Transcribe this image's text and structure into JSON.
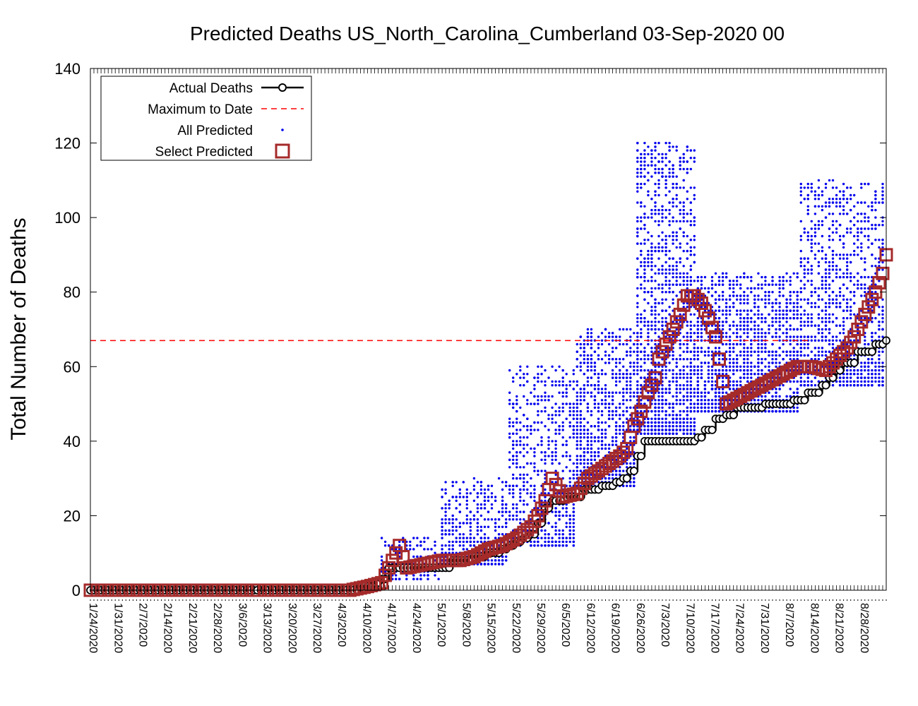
{
  "chart_data": {
    "type": "scatter",
    "title": "Predicted Deaths US_North_Carolina_Cumberland 03-Sep-2020 00",
    "ylabel": "Total Number of Deaths",
    "xlabel": "",
    "ylim": [
      0,
      140
    ],
    "yticks": [
      0,
      20,
      40,
      60,
      80,
      100,
      120,
      140
    ],
    "x_start": "1/23/2020",
    "x_end": "9/3/2020",
    "xtick_labels": [
      "1/24/2020",
      "1/31/2020",
      "2/7/2020",
      "2/14/2020",
      "2/21/2020",
      "2/28/2020",
      "3/6/2020",
      "3/13/2020",
      "3/20/2020",
      "3/27/2020",
      "4/3/2020",
      "4/10/2020",
      "4/17/2020",
      "4/24/2020",
      "5/1/2020",
      "5/8/2020",
      "5/15/2020",
      "5/22/2020",
      "5/29/2020",
      "6/5/2020",
      "6/12/2020",
      "6/19/2020",
      "6/26/2020",
      "7/3/2020",
      "7/10/2020",
      "7/17/2020",
      "7/24/2020",
      "7/31/2020",
      "8/7/2020",
      "8/14/2020",
      "8/21/2020",
      "8/28/2020"
    ],
    "legend_position": "top-left",
    "grid": false,
    "maximum_to_date": 67,
    "colors": {
      "actual": "#000000",
      "maximum": "#ff0000",
      "all_predicted": "#0000ee",
      "select_predicted": "#a52a2a"
    },
    "series": [
      {
        "name": "Actual Deaths",
        "style": "line-with-circles",
        "x": [
          "1/23/2020",
          "4/6/2020",
          "4/8/2020",
          "4/10/2020",
          "4/12/2020",
          "4/14/2020",
          "4/16/2020",
          "5/4/2020",
          "5/10/2020",
          "5/14/2020",
          "5/18/2020",
          "5/20/2020",
          "5/22/2020",
          "5/24/2020",
          "5/26/2020",
          "5/28/2020",
          "5/30/2020",
          "6/1/2020",
          "6/5/2020",
          "6/10/2020",
          "6/15/2020",
          "6/19/2020",
          "6/21/2020",
          "6/23/2020",
          "6/25/2020",
          "6/27/2020",
          "7/12/2020",
          "7/14/2020",
          "7/17/2020",
          "7/20/2020",
          "7/23/2020",
          "7/31/2020",
          "8/8/2020",
          "8/12/2020",
          "8/16/2020",
          "8/18/2020",
          "8/20/2020",
          "8/22/2020",
          "8/26/2020",
          "8/31/2020",
          "9/3/2020"
        ],
        "y": [
          0,
          0,
          1,
          1,
          2,
          3,
          6,
          8,
          9,
          10,
          11,
          12,
          13,
          14,
          15,
          18,
          22,
          24,
          25,
          27,
          28,
          29,
          30,
          32,
          36,
          40,
          41,
          43,
          46,
          47,
          49,
          50,
          51,
          53,
          55,
          57,
          59,
          61,
          64,
          66,
          67
        ]
      },
      {
        "name": "Maximum to Date",
        "style": "dashed-line",
        "x": [
          "1/23/2020",
          "8/12/2020"
        ],
        "y": [
          67,
          67
        ]
      },
      {
        "name": "All Predicted",
        "style": "dots",
        "bands": [
          {
            "x_range": [
              "4/14/2020",
              "5/1/2020"
            ],
            "y_range": [
              3,
              14
            ],
            "n": 150
          },
          {
            "x_range": [
              "5/1/2020",
              "5/20/2020"
            ],
            "y_range": [
              7,
              30
            ],
            "n": 450
          },
          {
            "x_range": [
              "5/20/2020",
              "6/8/2020"
            ],
            "y_range": [
              12,
              60
            ],
            "n": 700
          },
          {
            "x_range": [
              "6/8/2020",
              "6/25/2020"
            ],
            "y_range": [
              28,
              70
            ],
            "n": 900
          },
          {
            "x_range": [
              "6/25/2020",
              "7/12/2020"
            ],
            "y_range": [
              42,
              120
            ],
            "n": 1400
          },
          {
            "x_range": [
              "7/12/2020",
              "8/10/2020"
            ],
            "y_range": [
              48,
              85
            ],
            "n": 1500
          },
          {
            "x_range": [
              "8/10/2020",
              "9/3/2020"
            ],
            "y_range": [
              55,
              110
            ],
            "n": 1100
          }
        ]
      },
      {
        "name": "Select Predicted",
        "style": "hollow-squares",
        "x": [
          "1/23/2020",
          "2/10/2020",
          "3/10/2020",
          "4/5/2020",
          "4/10/2020",
          "4/14/2020",
          "4/16/2020",
          "4/19/2020",
          "4/21/2020",
          "4/26/2020",
          "5/1/2020",
          "5/6/2020",
          "5/10/2020",
          "5/14/2020",
          "5/18/2020",
          "5/22/2020",
          "5/26/2020",
          "5/28/2020",
          "5/30/2020",
          "6/1/2020",
          "6/4/2020",
          "6/8/2020",
          "6/11/2020",
          "6/14/2020",
          "6/17/2020",
          "6/20/2020",
          "6/22/2020",
          "6/24/2020",
          "6/26/2020",
          "6/28/2020",
          "6/30/2020",
          "7/1/2020",
          "7/3/2020",
          "7/5/2020",
          "7/7/2020",
          "7/9/2020",
          "7/11/2020",
          "7/13/2020",
          "7/15/2020",
          "7/17/2020",
          "7/20/2020",
          "7/24/2020",
          "7/28/2020",
          "8/1/2020",
          "8/5/2020",
          "8/9/2020",
          "8/13/2020",
          "8/17/2020",
          "8/19/2020",
          "8/21/2020",
          "8/23/2020",
          "8/25/2020",
          "8/27/2020",
          "8/29/2020",
          "8/31/2020",
          "9/2/2020",
          "9/3/2020"
        ],
        "y": [
          0,
          0,
          0,
          0,
          1,
          2,
          6,
          12,
          6,
          7,
          8,
          8,
          9,
          11,
          12,
          14,
          17,
          20,
          24,
          30,
          25,
          26,
          30,
          32,
          34,
          36,
          38,
          44,
          48,
          53,
          57,
          62,
          66,
          70,
          74,
          79,
          79,
          77,
          73,
          68,
          50,
          52,
          54,
          56,
          58,
          60,
          60,
          59,
          61,
          63,
          65,
          68,
          72,
          76,
          80,
          85,
          90
        ]
      }
    ],
    "legend": [
      {
        "label": "Actual Deaths"
      },
      {
        "label": "Maximum to Date"
      },
      {
        "label": "All Predicted"
      },
      {
        "label": "Select Predicted"
      }
    ]
  }
}
